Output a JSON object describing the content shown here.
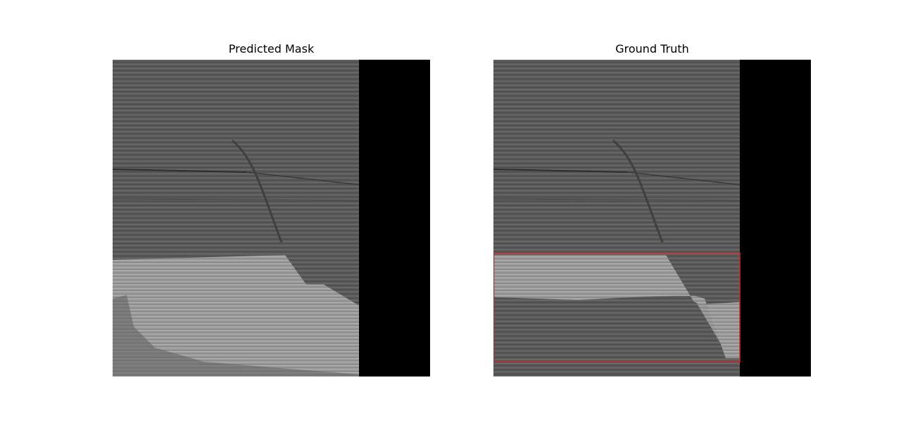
{
  "figure": {
    "panels": [
      {
        "title": "Predicted Mask"
      },
      {
        "title": "Ground Truth"
      }
    ],
    "colors": {
      "background": "#ffffff",
      "seismic_base": "#5b5b5b",
      "mask_overlay": "#9a9a9a",
      "padding_black": "#000000",
      "bbox_red": "#d62728"
    }
  }
}
